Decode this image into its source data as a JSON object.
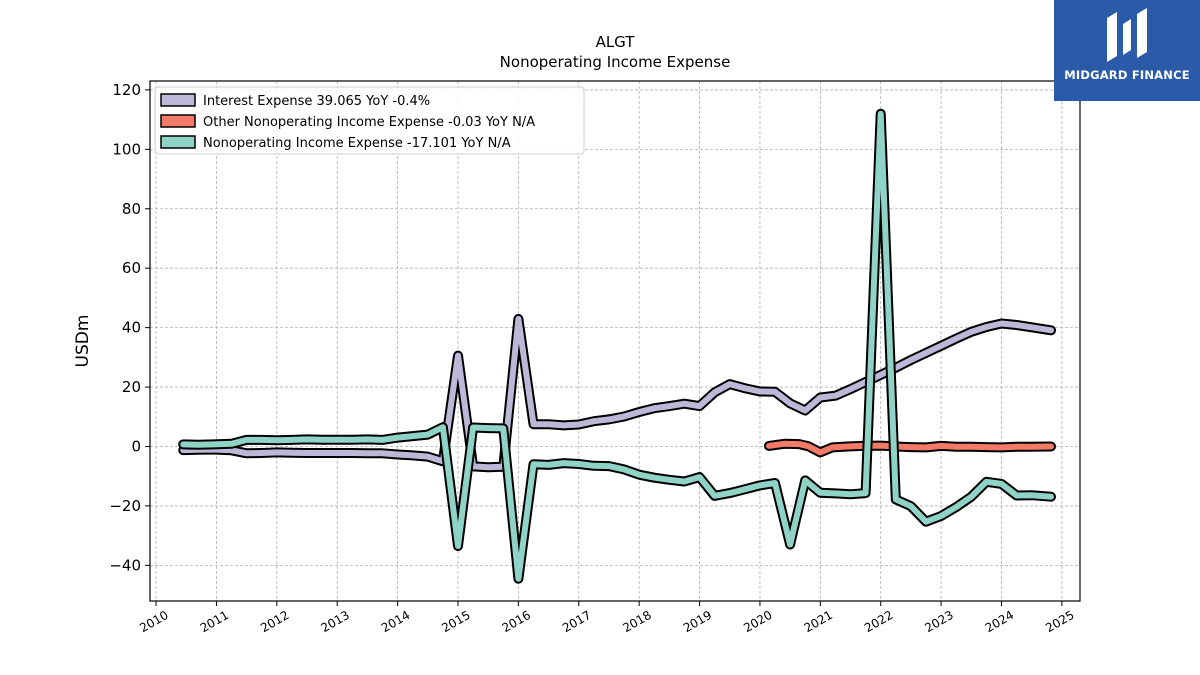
{
  "chart_data": {
    "type": "line",
    "title": "ALGT",
    "subtitle": "Nonoperating Income Expense",
    "ylabel": "USDm",
    "xlabel": "",
    "xlim": [
      2009.9,
      2025.3
    ],
    "ylim": [
      -52,
      123
    ],
    "yticks": [
      -40,
      -20,
      0,
      20,
      40,
      60,
      80,
      100,
      120
    ],
    "xticks": [
      "2010",
      "2011",
      "2012",
      "2013",
      "2014",
      "2015",
      "2016",
      "2017",
      "2018",
      "2019",
      "2020",
      "2021",
      "2022",
      "2023",
      "2024",
      "2025"
    ],
    "grid": true,
    "legend_position": "top-left",
    "legend": [
      "Interest Expense  39.065 YoY -0.4%",
      "Other Nonoperating Income Expense  -0.03 YoY N/A",
      "Nonoperating Income Expense  -17.101 YoY N/A"
    ],
    "series": [
      {
        "color": "#bcb8d8",
        "x": [
          2010.45,
          2010.7,
          2010.95,
          2011.25,
          2011.5,
          2011.75,
          2012.0,
          2012.25,
          2012.5,
          2012.75,
          2013.0,
          2013.25,
          2013.5,
          2013.75,
          2014.0,
          2014.25,
          2014.5,
          2014.75,
          2015.0,
          2015.25,
          2015.5,
          2015.75,
          2016.0,
          2016.25,
          2016.5,
          2016.75,
          2017.0,
          2017.25,
          2017.5,
          2017.75,
          2018.0,
          2018.25,
          2018.5,
          2018.75,
          2019.0,
          2019.25,
          2019.5,
          2019.75,
          2020.0,
          2020.25,
          2020.5,
          2020.75,
          2021.0,
          2021.25,
          2021.5,
          2021.75,
          2022.0,
          2022.25,
          2022.5,
          2022.75,
          2023.0,
          2023.25,
          2023.5,
          2023.75,
          2024.0,
          2024.25,
          2024.5,
          2024.82
        ],
        "values": [
          -1.2,
          -1.1,
          -1.0,
          -1.3,
          -2.3,
          -2.2,
          -2.0,
          -2.1,
          -2.2,
          -2.2,
          -2.2,
          -2.2,
          -2.3,
          -2.3,
          -2.7,
          -3.0,
          -3.4,
          -5.0,
          30.6,
          -6.7,
          -7.0,
          -6.8,
          42.9,
          7.5,
          7.5,
          7.1,
          7.4,
          8.5,
          9.1,
          10.1,
          11.6,
          12.9,
          13.6,
          14.4,
          13.6,
          18.2,
          21.0,
          19.6,
          18.5,
          18.4,
          14.5,
          12.1,
          16.5,
          17.1,
          19.3,
          21.7,
          24.1,
          26.5,
          29.1,
          31.5,
          33.9,
          36.3,
          38.6,
          40.2,
          41.4,
          40.9,
          40.1,
          39.1
        ]
      },
      {
        "color": "#f47a68",
        "x": [
          2020.15,
          2020.4,
          2020.65,
          2020.8,
          2021.0,
          2021.2,
          2021.45,
          2021.7,
          2022.0,
          2022.25,
          2022.5,
          2022.75,
          2023.0,
          2023.25,
          2023.5,
          2023.75,
          2024.0,
          2024.25,
          2024.5,
          2024.82
        ],
        "values": [
          0.2,
          0.9,
          0.8,
          0.1,
          -2.0,
          -0.3,
          0.0,
          0.2,
          0.3,
          0.0,
          -0.2,
          -0.3,
          0.2,
          -0.1,
          -0.1,
          -0.2,
          -0.3,
          -0.1,
          -0.1,
          0.0
        ]
      },
      {
        "color": "#8fd3c6",
        "x": [
          2010.45,
          2010.7,
          2010.95,
          2011.25,
          2011.5,
          2011.75,
          2012.0,
          2012.25,
          2012.5,
          2012.75,
          2013.0,
          2013.25,
          2013.5,
          2013.75,
          2014.0,
          2014.25,
          2014.5,
          2014.75,
          2015.0,
          2015.25,
          2015.5,
          2015.75,
          2016.0,
          2016.25,
          2016.5,
          2016.75,
          2017.0,
          2017.25,
          2017.5,
          2017.75,
          2018.0,
          2018.25,
          2018.5,
          2018.75,
          2019.0,
          2019.25,
          2019.5,
          2019.75,
          2020.0,
          2020.25,
          2020.5,
          2020.75,
          2021.0,
          2021.25,
          2021.5,
          2021.75,
          2022.0,
          2022.25,
          2022.5,
          2022.75,
          2023.0,
          2023.25,
          2023.5,
          2023.75,
          2024.0,
          2024.25,
          2024.5,
          2024.82
        ],
        "values": [
          0.7,
          0.6,
          0.7,
          0.9,
          2.2,
          2.2,
          2.1,
          2.2,
          2.4,
          2.3,
          2.3,
          2.3,
          2.4,
          2.2,
          3.0,
          3.5,
          4.0,
          6.5,
          -33.5,
          6.4,
          6.2,
          6.1,
          -44.5,
          -6.0,
          -6.2,
          -5.6,
          -5.9,
          -6.5,
          -6.6,
          -7.7,
          -9.5,
          -10.5,
          -11.2,
          -11.8,
          -10.3,
          -16.6,
          -15.7,
          -14.4,
          -13.1,
          -12.3,
          -33.0,
          -11.4,
          -15.6,
          -15.8,
          -16.1,
          -15.7,
          112.0,
          -17.8,
          -20.1,
          -25.3,
          -23.4,
          -20.4,
          -16.9,
          -11.9,
          -12.6,
          -16.5,
          -16.4,
          -16.9
        ]
      }
    ]
  },
  "logo": {
    "text": "MIDGARD FINANCE",
    "color": "#2a5aa8"
  }
}
